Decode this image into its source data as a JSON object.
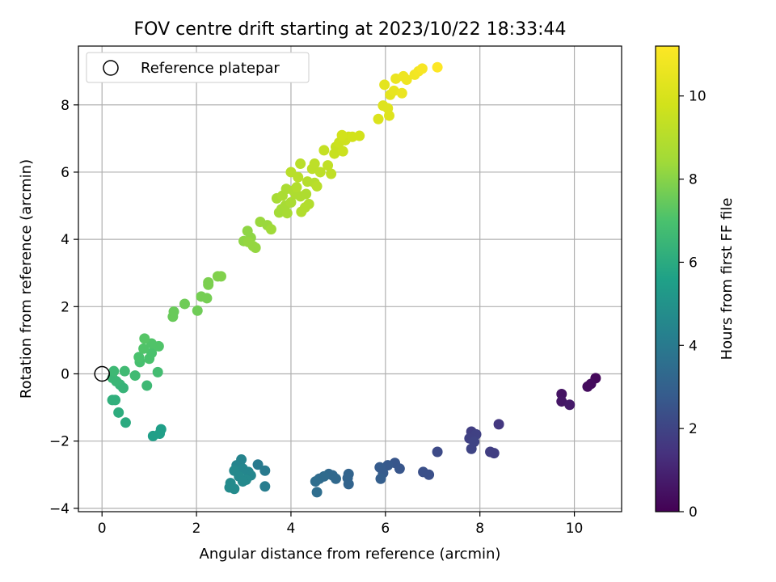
{
  "chart_data": {
    "type": "scatter",
    "title": "FOV centre drift starting at 2023/10/22 18:33:44",
    "xlabel": "Angular distance from reference (arcmin)",
    "ylabel": "Rotation from reference (arcmin)",
    "xlim": [
      -0.5,
      11.0
    ],
    "ylim": [
      -4.1,
      9.75
    ],
    "xticks": [
      0,
      2,
      4,
      6,
      8,
      10
    ],
    "yticks": [
      -4,
      -2,
      0,
      2,
      4,
      6,
      8
    ],
    "grid": true,
    "legend": {
      "position": "top-left",
      "entries": [
        "Reference platepar"
      ]
    },
    "reference_point": {
      "x": 0,
      "y": 0,
      "label": "Reference platepar"
    },
    "colorbar": {
      "label": "Hours from first FF file",
      "min": 0,
      "max": 11.2,
      "ticks": [
        0,
        2,
        4,
        6,
        8,
        10
      ],
      "colormap": "viridis"
    },
    "points": [
      {
        "x": 10.45,
        "y": -0.13,
        "t": 0.2
      },
      {
        "x": 10.35,
        "y": -0.3,
        "t": 0.3
      },
      {
        "x": 10.28,
        "y": -0.38,
        "t": 0.3
      },
      {
        "x": 9.73,
        "y": -0.6,
        "t": 0.5
      },
      {
        "x": 9.73,
        "y": -0.82,
        "t": 0.6
      },
      {
        "x": 9.9,
        "y": -0.92,
        "t": 0.7
      },
      {
        "x": 8.4,
        "y": -1.5,
        "t": 1.6
      },
      {
        "x": 7.82,
        "y": -1.72,
        "t": 1.8
      },
      {
        "x": 7.92,
        "y": -1.8,
        "t": 1.9
      },
      {
        "x": 7.78,
        "y": -1.92,
        "t": 1.9
      },
      {
        "x": 7.88,
        "y": -2.02,
        "t": 2.0
      },
      {
        "x": 7.82,
        "y": -2.23,
        "t": 2.0
      },
      {
        "x": 8.22,
        "y": -2.32,
        "t": 1.8
      },
      {
        "x": 8.3,
        "y": -2.36,
        "t": 1.8
      },
      {
        "x": 7.1,
        "y": -2.32,
        "t": 2.2
      },
      {
        "x": 6.8,
        "y": -2.92,
        "t": 2.4
      },
      {
        "x": 6.92,
        "y": -3.0,
        "t": 2.4
      },
      {
        "x": 6.2,
        "y": -2.65,
        "t": 2.6
      },
      {
        "x": 6.05,
        "y": -2.72,
        "t": 2.7
      },
      {
        "x": 6.3,
        "y": -2.82,
        "t": 2.6
      },
      {
        "x": 5.88,
        "y": -2.78,
        "t": 2.8
      },
      {
        "x": 5.95,
        "y": -2.95,
        "t": 2.8
      },
      {
        "x": 5.9,
        "y": -3.12,
        "t": 2.9
      },
      {
        "x": 5.22,
        "y": -2.98,
        "t": 3.1
      },
      {
        "x": 5.2,
        "y": -3.1,
        "t": 3.1
      },
      {
        "x": 5.22,
        "y": -3.28,
        "t": 3.1
      },
      {
        "x": 4.8,
        "y": -2.98,
        "t": 3.3
      },
      {
        "x": 4.88,
        "y": -3.02,
        "t": 3.3
      },
      {
        "x": 4.95,
        "y": -3.12,
        "t": 3.3
      },
      {
        "x": 4.7,
        "y": -3.05,
        "t": 3.4
      },
      {
        "x": 4.6,
        "y": -3.12,
        "t": 3.4
      },
      {
        "x": 4.52,
        "y": -3.2,
        "t": 3.5
      },
      {
        "x": 4.55,
        "y": -3.52,
        "t": 3.5
      },
      {
        "x": 3.3,
        "y": -2.7,
        "t": 4.0
      },
      {
        "x": 3.45,
        "y": -2.88,
        "t": 4.0
      },
      {
        "x": 3.45,
        "y": -3.35,
        "t": 4.1
      },
      {
        "x": 2.95,
        "y": -2.55,
        "t": 4.4
      },
      {
        "x": 2.85,
        "y": -2.72,
        "t": 4.4
      },
      {
        "x": 2.98,
        "y": -2.82,
        "t": 4.5
      },
      {
        "x": 2.8,
        "y": -2.88,
        "t": 4.6
      },
      {
        "x": 3.1,
        "y": -2.92,
        "t": 4.5
      },
      {
        "x": 3.15,
        "y": -3.02,
        "t": 4.5
      },
      {
        "x": 2.9,
        "y": -3.05,
        "t": 4.6
      },
      {
        "x": 3.05,
        "y": -3.15,
        "t": 4.6
      },
      {
        "x": 2.98,
        "y": -3.2,
        "t": 4.6
      },
      {
        "x": 2.72,
        "y": -3.25,
        "t": 4.7
      },
      {
        "x": 2.7,
        "y": -3.38,
        "t": 4.7
      },
      {
        "x": 2.8,
        "y": -3.42,
        "t": 4.7
      },
      {
        "x": 1.25,
        "y": -1.65,
        "t": 5.5
      },
      {
        "x": 1.22,
        "y": -1.78,
        "t": 5.5
      },
      {
        "x": 1.08,
        "y": -1.85,
        "t": 5.5
      },
      {
        "x": 0.5,
        "y": -1.45,
        "t": 6.0
      },
      {
        "x": 0.35,
        "y": -1.15,
        "t": 6.1
      },
      {
        "x": 0.28,
        "y": -0.78,
        "t": 6.2
      },
      {
        "x": 0.22,
        "y": -0.78,
        "t": 6.2
      },
      {
        "x": 0.45,
        "y": -0.42,
        "t": 6.4
      },
      {
        "x": 0.38,
        "y": -0.32,
        "t": 6.4
      },
      {
        "x": 0.3,
        "y": -0.22,
        "t": 6.5
      },
      {
        "x": 0.22,
        "y": -0.12,
        "t": 6.5
      },
      {
        "x": 0.25,
        "y": 0.08,
        "t": 6.6
      },
      {
        "x": 0.48,
        "y": 0.08,
        "t": 6.7
      },
      {
        "x": 0.7,
        "y": -0.05,
        "t": 6.7
      },
      {
        "x": 0.95,
        "y": -0.35,
        "t": 6.6
      },
      {
        "x": 1.18,
        "y": 0.05,
        "t": 6.8
      },
      {
        "x": 0.8,
        "y": 0.35,
        "t": 6.9
      },
      {
        "x": 1.0,
        "y": 0.45,
        "t": 7.0
      },
      {
        "x": 0.78,
        "y": 0.5,
        "t": 7.0
      },
      {
        "x": 1.05,
        "y": 0.62,
        "t": 7.0
      },
      {
        "x": 0.88,
        "y": 0.75,
        "t": 7.1
      },
      {
        "x": 1.2,
        "y": 0.82,
        "t": 7.1
      },
      {
        "x": 1.05,
        "y": 0.9,
        "t": 7.1
      },
      {
        "x": 0.9,
        "y": 1.05,
        "t": 7.2
      },
      {
        "x": 1.5,
        "y": 1.7,
        "t": 7.5
      },
      {
        "x": 1.52,
        "y": 1.85,
        "t": 7.5
      },
      {
        "x": 1.75,
        "y": 2.08,
        "t": 7.6
      },
      {
        "x": 2.02,
        "y": 1.88,
        "t": 7.6
      },
      {
        "x": 2.1,
        "y": 2.3,
        "t": 7.7
      },
      {
        "x": 2.22,
        "y": 2.25,
        "t": 7.7
      },
      {
        "x": 2.25,
        "y": 2.65,
        "t": 7.8
      },
      {
        "x": 2.25,
        "y": 2.72,
        "t": 7.8
      },
      {
        "x": 2.45,
        "y": 2.9,
        "t": 7.9
      },
      {
        "x": 2.52,
        "y": 2.9,
        "t": 7.9
      },
      {
        "x": 3.0,
        "y": 3.95,
        "t": 8.1
      },
      {
        "x": 3.08,
        "y": 4.25,
        "t": 8.1
      },
      {
        "x": 3.15,
        "y": 4.05,
        "t": 8.1
      },
      {
        "x": 3.2,
        "y": 3.8,
        "t": 8.2
      },
      {
        "x": 3.25,
        "y": 3.75,
        "t": 8.2
      },
      {
        "x": 3.1,
        "y": 3.92,
        "t": 8.2
      },
      {
        "x": 3.35,
        "y": 4.52,
        "t": 8.3
      },
      {
        "x": 3.5,
        "y": 4.42,
        "t": 8.3
      },
      {
        "x": 3.58,
        "y": 4.3,
        "t": 8.4
      },
      {
        "x": 3.75,
        "y": 4.8,
        "t": 8.5
      },
      {
        "x": 3.8,
        "y": 4.9,
        "t": 8.5
      },
      {
        "x": 3.92,
        "y": 4.78,
        "t": 8.6
      },
      {
        "x": 3.88,
        "y": 5.0,
        "t": 8.6
      },
      {
        "x": 3.7,
        "y": 5.22,
        "t": 8.6
      },
      {
        "x": 3.82,
        "y": 5.3,
        "t": 8.7
      },
      {
        "x": 3.9,
        "y": 5.5,
        "t": 8.7
      },
      {
        "x": 4.0,
        "y": 5.1,
        "t": 8.7
      },
      {
        "x": 4.05,
        "y": 5.45,
        "t": 8.8
      },
      {
        "x": 4.1,
        "y": 5.35,
        "t": 8.8
      },
      {
        "x": 4.2,
        "y": 5.28,
        "t": 8.8
      },
      {
        "x": 4.32,
        "y": 5.35,
        "t": 8.8
      },
      {
        "x": 4.38,
        "y": 5.05,
        "t": 8.9
      },
      {
        "x": 4.22,
        "y": 4.82,
        "t": 8.9
      },
      {
        "x": 4.3,
        "y": 4.95,
        "t": 8.9
      },
      {
        "x": 4.12,
        "y": 5.55,
        "t": 8.9
      },
      {
        "x": 4.35,
        "y": 5.72,
        "t": 9.0
      },
      {
        "x": 4.5,
        "y": 5.68,
        "t": 9.0
      },
      {
        "x": 4.0,
        "y": 6.0,
        "t": 9.1
      },
      {
        "x": 4.15,
        "y": 5.85,
        "t": 9.1
      },
      {
        "x": 4.2,
        "y": 6.25,
        "t": 9.1
      },
      {
        "x": 4.45,
        "y": 6.1,
        "t": 9.2
      },
      {
        "x": 4.5,
        "y": 6.25,
        "t": 9.2
      },
      {
        "x": 4.62,
        "y": 6.0,
        "t": 9.2
      },
      {
        "x": 4.55,
        "y": 5.58,
        "t": 9.1
      },
      {
        "x": 4.78,
        "y": 6.2,
        "t": 9.3
      },
      {
        "x": 4.7,
        "y": 6.65,
        "t": 9.4
      },
      {
        "x": 4.85,
        "y": 5.95,
        "t": 9.3
      },
      {
        "x": 4.92,
        "y": 6.55,
        "t": 9.5
      },
      {
        "x": 4.95,
        "y": 6.75,
        "t": 9.5
      },
      {
        "x": 5.02,
        "y": 6.88,
        "t": 9.6
      },
      {
        "x": 5.1,
        "y": 6.62,
        "t": 9.6
      },
      {
        "x": 5.15,
        "y": 6.95,
        "t": 9.7
      },
      {
        "x": 5.22,
        "y": 7.05,
        "t": 9.7
      },
      {
        "x": 5.3,
        "y": 7.05,
        "t": 9.8
      },
      {
        "x": 5.45,
        "y": 7.08,
        "t": 9.8
      },
      {
        "x": 5.08,
        "y": 7.1,
        "t": 9.8
      },
      {
        "x": 5.85,
        "y": 7.58,
        "t": 10.1
      },
      {
        "x": 5.95,
        "y": 7.98,
        "t": 10.2
      },
      {
        "x": 6.05,
        "y": 7.9,
        "t": 10.2
      },
      {
        "x": 6.08,
        "y": 7.68,
        "t": 10.2
      },
      {
        "x": 5.98,
        "y": 8.6,
        "t": 10.4
      },
      {
        "x": 6.1,
        "y": 8.3,
        "t": 10.4
      },
      {
        "x": 6.18,
        "y": 8.42,
        "t": 10.5
      },
      {
        "x": 6.22,
        "y": 8.78,
        "t": 10.6
      },
      {
        "x": 6.35,
        "y": 8.35,
        "t": 10.6
      },
      {
        "x": 6.38,
        "y": 8.85,
        "t": 10.7
      },
      {
        "x": 6.45,
        "y": 8.75,
        "t": 10.7
      },
      {
        "x": 6.62,
        "y": 8.9,
        "t": 10.8
      },
      {
        "x": 6.7,
        "y": 9.0,
        "t": 10.9
      },
      {
        "x": 6.78,
        "y": 9.08,
        "t": 11.0
      },
      {
        "x": 7.1,
        "y": 9.12,
        "t": 11.2
      }
    ]
  }
}
